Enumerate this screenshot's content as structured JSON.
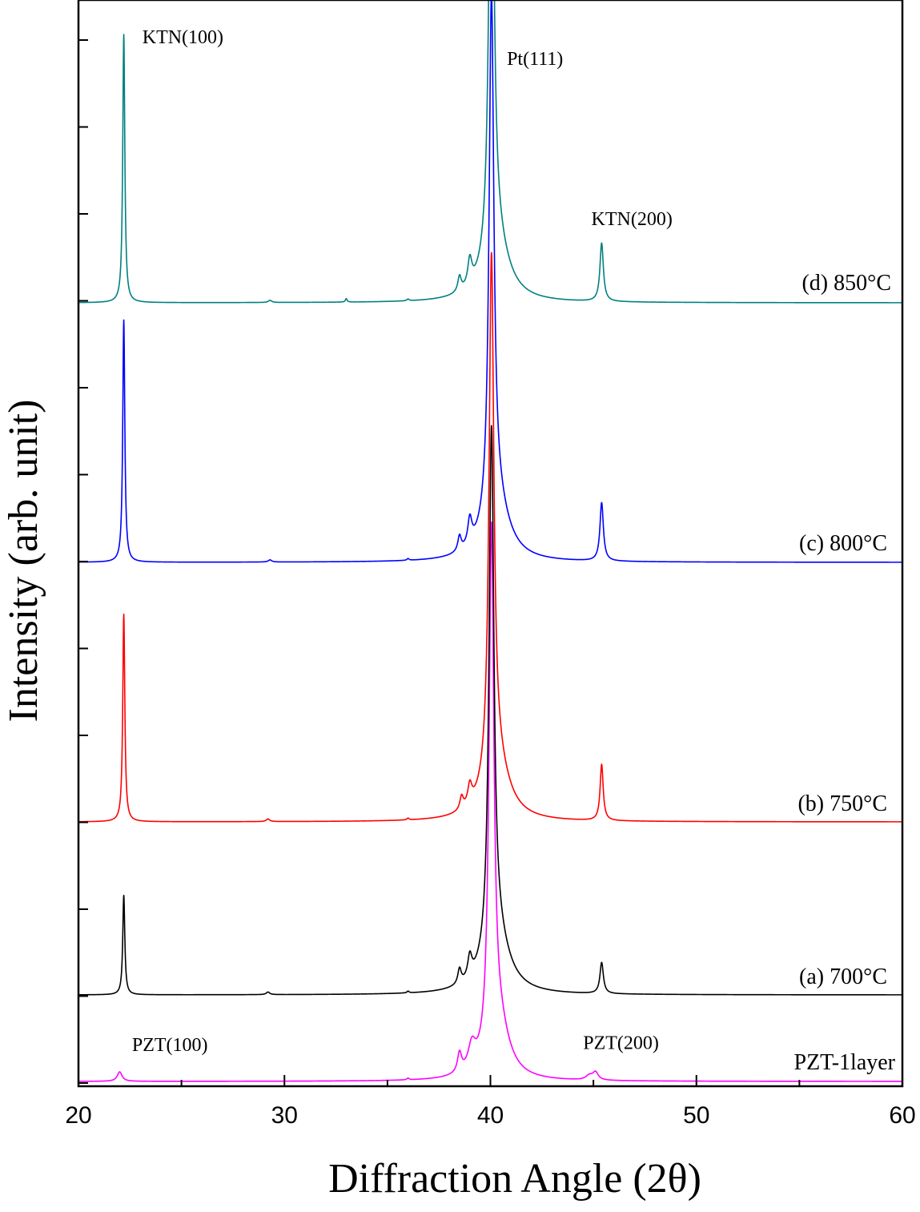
{
  "chart_data": {
    "type": "line",
    "xlabel": "Diffraction Angle (2θ)",
    "ylabel": "Intensity (arb. unit)",
    "xlim": [
      20,
      60
    ],
    "xticks": [
      20,
      30,
      40,
      50,
      60
    ],
    "y_tick_labels": "none",
    "grid": false,
    "legend": "none",
    "series": [
      {
        "name": "PZT-1layer",
        "color": "#ff00ff",
        "offset": 0.0,
        "baseline": 0.0,
        "peaks": [
          {
            "x": 22.0,
            "h": 0.22,
            "w": 0.14
          },
          {
            "x": 36.0,
            "h": 0.04,
            "w": 0.06
          },
          {
            "x": 38.5,
            "h": 0.45,
            "w": 0.12
          },
          {
            "x": 39.1,
            "h": 0.55,
            "w": 0.22
          },
          {
            "x": 40.05,
            "h": 12.0,
            "w": 0.14
          },
          {
            "x": 40.4,
            "h": 1.2,
            "w": 0.6
          },
          {
            "x": 44.8,
            "h": 0.1,
            "w": 0.2
          },
          {
            "x": 45.1,
            "h": 0.18,
            "w": 0.16
          }
        ]
      },
      {
        "name": "(a) 700°C",
        "color": "#000000",
        "offset": 2.0,
        "baseline": 0.0,
        "peaks": [
          {
            "x": 22.2,
            "h": 2.3,
            "w": 0.06
          },
          {
            "x": 29.2,
            "h": 0.06,
            "w": 0.1
          },
          {
            "x": 36.0,
            "h": 0.04,
            "w": 0.06
          },
          {
            "x": 38.5,
            "h": 0.35,
            "w": 0.1
          },
          {
            "x": 39.0,
            "h": 0.5,
            "w": 0.12
          },
          {
            "x": 40.05,
            "h": 12.0,
            "w": 0.14
          },
          {
            "x": 40.3,
            "h": 1.3,
            "w": 0.7
          },
          {
            "x": 45.4,
            "h": 0.72,
            "w": 0.1
          }
        ]
      },
      {
        "name": "(b) 750°C",
        "color": "#ff0000",
        "offset": 6.0,
        "baseline": 0.0,
        "peaks": [
          {
            "x": 22.2,
            "h": 4.8,
            "w": 0.06
          },
          {
            "x": 29.2,
            "h": 0.06,
            "w": 0.1
          },
          {
            "x": 36.0,
            "h": 0.04,
            "w": 0.06
          },
          {
            "x": 38.6,
            "h": 0.3,
            "w": 0.1
          },
          {
            "x": 39.0,
            "h": 0.45,
            "w": 0.12
          },
          {
            "x": 40.05,
            "h": 12.0,
            "w": 0.14
          },
          {
            "x": 40.3,
            "h": 1.3,
            "w": 0.7
          },
          {
            "x": 45.4,
            "h": 1.3,
            "w": 0.09
          }
        ]
      },
      {
        "name": "(c) 800°C",
        "color": "#0000ff",
        "offset": 12.0,
        "baseline": 0.0,
        "peaks": [
          {
            "x": 22.2,
            "h": 5.6,
            "w": 0.06
          },
          {
            "x": 29.3,
            "h": 0.05,
            "w": 0.1
          },
          {
            "x": 36.0,
            "h": 0.04,
            "w": 0.06
          },
          {
            "x": 38.5,
            "h": 0.35,
            "w": 0.1
          },
          {
            "x": 39.0,
            "h": 0.6,
            "w": 0.12
          },
          {
            "x": 40.05,
            "h": 12.0,
            "w": 0.14
          },
          {
            "x": 40.3,
            "h": 1.3,
            "w": 0.7
          },
          {
            "x": 45.4,
            "h": 1.35,
            "w": 0.1
          }
        ]
      },
      {
        "name": "(d) 850°C",
        "color": "#008080",
        "offset": 18.0,
        "baseline": 0.0,
        "peaks": [
          {
            "x": 22.2,
            "h": 6.2,
            "w": 0.06
          },
          {
            "x": 29.3,
            "h": 0.05,
            "w": 0.1
          },
          {
            "x": 33.0,
            "h": 0.08,
            "w": 0.05
          },
          {
            "x": 36.0,
            "h": 0.04,
            "w": 0.06
          },
          {
            "x": 38.5,
            "h": 0.35,
            "w": 0.1
          },
          {
            "x": 39.0,
            "h": 0.6,
            "w": 0.12
          },
          {
            "x": 40.05,
            "h": 12.0,
            "w": 0.14
          },
          {
            "x": 40.3,
            "h": 1.3,
            "w": 0.7
          },
          {
            "x": 45.4,
            "h": 1.35,
            "w": 0.1
          }
        ]
      }
    ],
    "annotations": [
      {
        "text": "KTN(100)",
        "x": 23.1,
        "y": 24.0
      },
      {
        "text": "Pt(111)",
        "x": 40.8,
        "y": 23.5
      },
      {
        "text": "KTN(200)",
        "x": 44.9,
        "y": 19.8
      },
      {
        "text": "PZT(100)",
        "x": 22.6,
        "y": 0.7
      },
      {
        "text": "PZT(200)",
        "x": 44.5,
        "y": 0.75
      }
    ],
    "ylim": [
      0,
      25
    ]
  }
}
